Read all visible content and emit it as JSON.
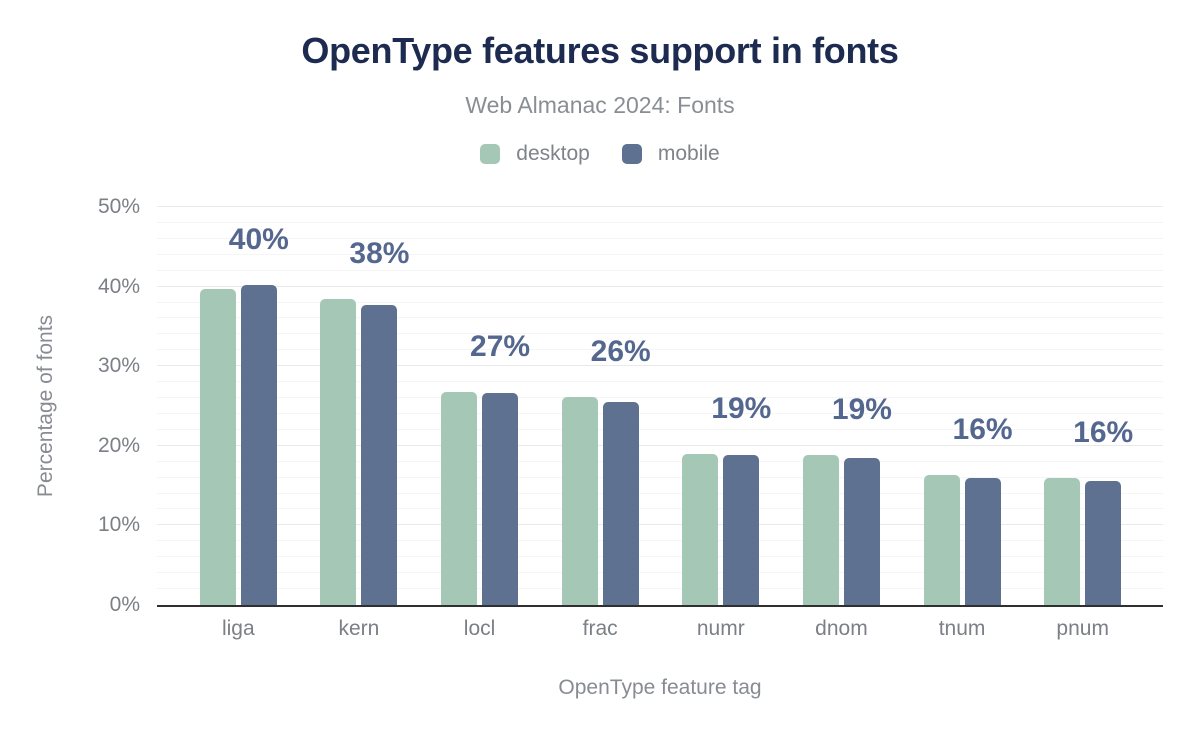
{
  "chart_data": {
    "type": "bar",
    "title": "OpenType features support in fonts",
    "subtitle": "Web Almanac 2024: Fonts",
    "xlabel": "OpenType feature tag",
    "ylabel": "Percentage of fonts",
    "categories": [
      "liga",
      "kern",
      "locl",
      "frac",
      "numr",
      "dnom",
      "tnum",
      "pnum"
    ],
    "series": [
      {
        "name": "desktop",
        "color": "#a5c8b6",
        "values": [
          39.7,
          38.4,
          26.8,
          26.1,
          19.0,
          18.8,
          16.3,
          15.9
        ]
      },
      {
        "name": "mobile",
        "color": "#5f7190",
        "values": [
          40.2,
          37.7,
          26.6,
          25.5,
          18.8,
          18.5,
          16.0,
          15.6
        ]
      }
    ],
    "bar_labels": [
      "40%",
      "38%",
      "27%",
      "26%",
      "19%",
      "19%",
      "16%",
      "16%"
    ],
    "ylim": [
      0,
      50
    ],
    "y_ticks": [
      {
        "value": 0,
        "label": "0%"
      },
      {
        "value": 10,
        "label": "10%"
      },
      {
        "value": 20,
        "label": "20%"
      },
      {
        "value": 30,
        "label": "30%"
      },
      {
        "value": 40,
        "label": "40%"
      },
      {
        "value": 50,
        "label": "50%"
      }
    ],
    "grid": {
      "minor_step": 2,
      "major_step": 10,
      "vertical": false
    },
    "legend_position": "top"
  },
  "colors": {
    "background": "#ffffff",
    "title": "#1d2b50",
    "subtitle": "#8a8e94",
    "legend_text": "#7f838a",
    "tick_label": "#7b7f86",
    "axis_title": "#888c92",
    "bar_label": "#54678f",
    "axis_line": "#2f2f2f",
    "gridline_minor": "#f5f5f5",
    "gridline_major": "#e9e9e9",
    "desktop": "#a5c8b6",
    "mobile": "#5f7190"
  }
}
